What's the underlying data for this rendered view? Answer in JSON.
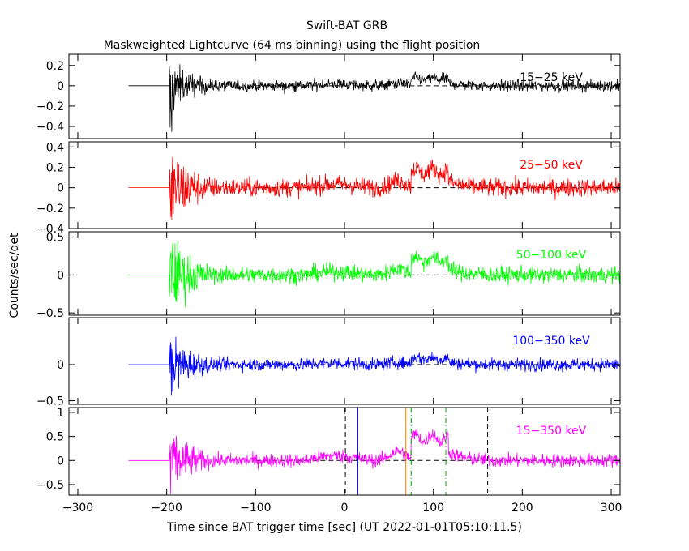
{
  "chart_data": {
    "type": "line",
    "title": "Swift-BAT GRB",
    "subtitle": "Maskweighted Lightcurve (64 ms binning) using the flight position",
    "xlabel": "Time since BAT trigger time [sec] (UT 2022-01-01T05:10:11.5)",
    "ylabel": "Counts/sec/det",
    "xlim": [
      -310,
      310
    ],
    "x_ticks": [
      -300,
      -200,
      -100,
      0,
      100,
      200,
      300
    ],
    "x_tick_labels": [
      "−300",
      "−200",
      "−100",
      "0",
      "100",
      "200",
      "300"
    ],
    "grid": false,
    "panels": [
      {
        "band": "15−25 keV",
        "color": "#000000",
        "ylim": [
          -0.52,
          0.31
        ],
        "y_ticks": [
          -0.4,
          -0.2,
          0,
          0.2
        ],
        "y_tick_labels": [
          "−0.4",
          "−0.2",
          "0",
          "0.2"
        ],
        "noise": 0.028,
        "pulse": 0.08,
        "spike_max": 0.28,
        "spike_min": -0.52
      },
      {
        "band": "25−50 keV",
        "color": "#ff0000",
        "ylim": [
          -0.4,
          0.45
        ],
        "y_ticks": [
          -0.4,
          -0.2,
          0,
          0.2,
          0.4
        ],
        "y_tick_labels": [
          "−0.4",
          "−0.2",
          "0",
          "0.2",
          "0.4"
        ],
        "noise": 0.045,
        "pulse": 0.19,
        "spike_max": 0.3,
        "spike_min": -0.35
      },
      {
        "band": "50−100 keV",
        "color": "#00ff00",
        "ylim": [
          -0.53,
          0.57
        ],
        "y_ticks": [
          -0.5,
          0,
          0.5
        ],
        "y_tick_labels": [
          "−0.5",
          "0",
          "0.5"
        ],
        "noise": 0.055,
        "pulse": 0.24,
        "spike_max": 0.32,
        "spike_min": -0.4
      },
      {
        "band": "100−350 keV",
        "color": "#0000ff",
        "ylim": [
          -0.55,
          0.65
        ],
        "y_ticks": [
          -0.5,
          0
        ],
        "y_tick_labels": [
          "−0.5",
          "0"
        ],
        "noise": 0.045,
        "pulse": 0.1,
        "spike_max": 0.38,
        "spike_min": -0.55
      },
      {
        "band": "15−350 keV",
        "color": "#ff00ff",
        "ylim": [
          -0.72,
          1.1
        ],
        "y_ticks": [
          -0.5,
          0,
          0.5,
          1
        ],
        "y_tick_labels": [
          "−0.5",
          "0",
          "0.5",
          "1"
        ],
        "noise": 0.07,
        "pulse": 0.55,
        "spike_max": 0.55,
        "spike_min": -0.75
      }
    ],
    "data_start": -243,
    "data_flat_end": -197,
    "burst_start": 78,
    "burst_end": 117,
    "dashed_ref_start": -100,
    "vlines": [
      {
        "x": 1,
        "color": "#000000",
        "dash": "6,4"
      },
      {
        "x": 15,
        "color": "#0000ff",
        "dash": ""
      },
      {
        "x": 69,
        "color": "#ff8000",
        "dash": ""
      },
      {
        "x": 75,
        "color": "#00aa00",
        "dash": "6,3,1,3"
      },
      {
        "x": 114,
        "color": "#00aa00",
        "dash": "6,3,1,3"
      },
      {
        "x": 161,
        "color": "#000000",
        "dash": "6,4"
      }
    ]
  }
}
